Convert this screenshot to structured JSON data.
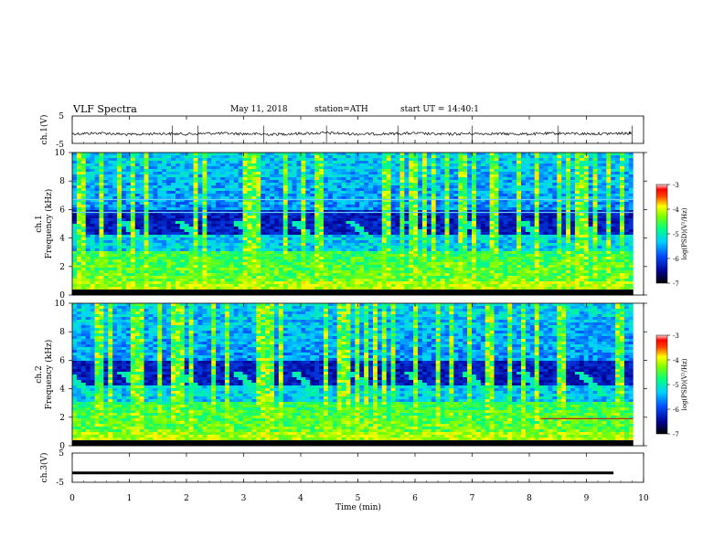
{
  "header": {
    "title": "VLF Spectra",
    "date": "May 11, 2018",
    "station": "station=ATH",
    "start_ut": "start UT = 14:40:1"
  },
  "chart_data": [
    {
      "type": "line",
      "panel": "ch1-waveform",
      "ylabel": "ch.1(V)",
      "ylim": [
        -5,
        5
      ],
      "yticks": [
        "5",
        "-5"
      ],
      "x": [
        0,
        0.5,
        1,
        1.5,
        2,
        2.5,
        3,
        3.5,
        4,
        4.5,
        5,
        5.5,
        6,
        6.5,
        7,
        7.5,
        8,
        8.5,
        9,
        9.5,
        9.8
      ],
      "values": [
        -1.5,
        -1.2,
        -1.8,
        -1.4,
        -1.6,
        -1.3,
        -1.5,
        -1.7,
        -1.4,
        -1.2,
        -1.6,
        -1.5,
        -1.3,
        -1.7,
        -1.4,
        -1.5,
        -1.6,
        -1.3,
        -1.5,
        -1.4,
        -1.2
      ]
    },
    {
      "type": "heatmap",
      "panel": "ch1-spectrogram",
      "ylabel": "ch.1 Frequency (kHz)",
      "ylim": [
        0,
        10
      ],
      "yticks": [
        "0",
        "2",
        "4",
        "6",
        "8",
        "10"
      ],
      "colorbar": {
        "label": "log(PSD)(V²/Hz)",
        "range": [
          -7,
          -3
        ],
        "ticks": [
          "-3",
          "-4",
          "-5",
          "-6",
          "-7"
        ]
      },
      "features": {
        "strong_band_khz": [
          0.3,
          3.0
        ],
        "dark_band_khz": [
          4.5,
          6.0
        ],
        "line_khz": [
          5.8,
          6.7
        ]
      }
    },
    {
      "type": "heatmap",
      "panel": "ch2-spectrogram",
      "ylabel": "ch.2 Frequency (kHz)",
      "ylim": [
        0,
        10
      ],
      "yticks": [
        "0",
        "2",
        "4",
        "6",
        "8",
        "10"
      ],
      "colorbar": {
        "label": "log(PSD)(V²/Hz)",
        "range": [
          -7,
          -3
        ],
        "ticks": [
          "-3",
          "-4",
          "-5",
          "-6",
          "-7"
        ]
      },
      "features": {
        "strong_band_khz": [
          0.3,
          3.0
        ],
        "dark_band_khz": [
          4.5,
          6.0
        ],
        "line_khz": [
          1.9
        ]
      }
    },
    {
      "type": "line",
      "panel": "ch3-waveform",
      "ylabel": "ch.3(V)",
      "ylim": [
        -5,
        5
      ],
      "yticks": [
        "5",
        "-5"
      ],
      "x": [
        0,
        9.8
      ],
      "values": [
        -1.8,
        -1.8
      ]
    }
  ],
  "xaxis": {
    "label": "Time (min)",
    "xlim": [
      0,
      10
    ],
    "ticks": [
      "0",
      "1",
      "2",
      "3",
      "4",
      "5",
      "6",
      "7",
      "8",
      "9",
      "10"
    ]
  },
  "colors": {
    "low": "#000080",
    "mid": "#00ff7f",
    "high": "#ff0000",
    "wave": "#000000"
  }
}
